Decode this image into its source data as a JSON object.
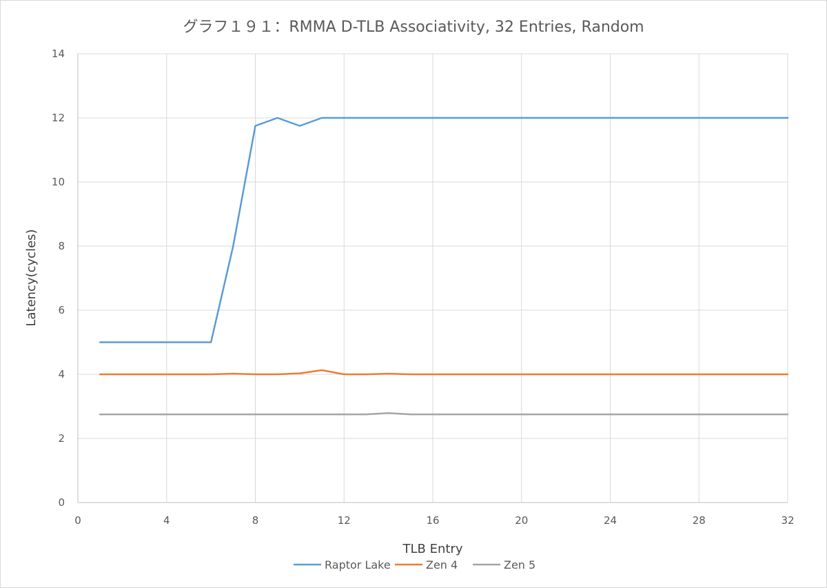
{
  "chart_data": {
    "type": "line",
    "title": "グラフ１９１：RMMA D-TLB Associativity, 32 Entries, Random",
    "xlabel": "TLB Entry",
    "ylabel": "Latency(cycles)",
    "xlim": [
      0,
      32
    ],
    "ylim": [
      0,
      14
    ],
    "x_ticks": [
      "0",
      "4",
      "8",
      "12",
      "16",
      "20",
      "24",
      "28",
      "32"
    ],
    "y_ticks": [
      "0",
      "2",
      "4",
      "6",
      "8",
      "10",
      "12",
      "14"
    ],
    "grid": true,
    "legend_position": "bottom",
    "x": [
      1,
      2,
      3,
      4,
      5,
      6,
      7,
      8,
      9,
      10,
      11,
      12,
      13,
      14,
      15,
      16,
      17,
      18,
      19,
      20,
      21,
      22,
      23,
      24,
      25,
      26,
      27,
      28,
      29,
      30,
      31,
      32
    ],
    "series": [
      {
        "name": "Raptor Lake",
        "color": "#5b9bd5",
        "values": [
          5,
          5,
          5,
          5,
          5,
          5,
          8,
          11.75,
          12,
          11.75,
          12,
          12,
          12,
          12,
          12,
          12,
          12,
          12,
          12,
          12,
          12,
          12,
          12,
          12,
          12,
          12,
          12,
          12,
          12,
          12,
          12,
          12
        ]
      },
      {
        "name": "Zen 4",
        "color": "#ed7d31",
        "values": [
          4,
          4,
          4,
          4,
          4,
          4,
          4.02,
          4,
          4,
          4.03,
          4.13,
          4,
          4,
          4.02,
          4,
          4,
          4,
          4,
          4,
          4,
          4,
          4,
          4,
          4,
          4,
          4,
          4,
          4,
          4,
          4,
          4,
          4
        ]
      },
      {
        "name": "Zen 5",
        "color": "#a5a5a5",
        "values": [
          2.75,
          2.75,
          2.75,
          2.75,
          2.75,
          2.75,
          2.75,
          2.75,
          2.75,
          2.75,
          2.75,
          2.75,
          2.75,
          2.79,
          2.75,
          2.75,
          2.75,
          2.75,
          2.75,
          2.75,
          2.75,
          2.75,
          2.75,
          2.75,
          2.75,
          2.75,
          2.75,
          2.75,
          2.75,
          2.75,
          2.75,
          2.75
        ]
      }
    ]
  }
}
